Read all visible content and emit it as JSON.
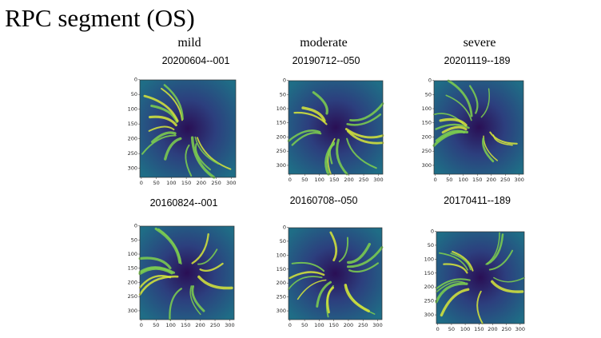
{
  "title": "RPC segment (OS)",
  "columns": [
    "mild",
    "moderate",
    "severe"
  ],
  "panels": [
    [
      "20200604--001",
      "20190712--050",
      "20201119--189"
    ],
    [
      "20160824--001",
      "20160708--050",
      "20170411--189"
    ]
  ],
  "axis_ticks": [
    0,
    50,
    100,
    150,
    200,
    250,
    300
  ]
}
